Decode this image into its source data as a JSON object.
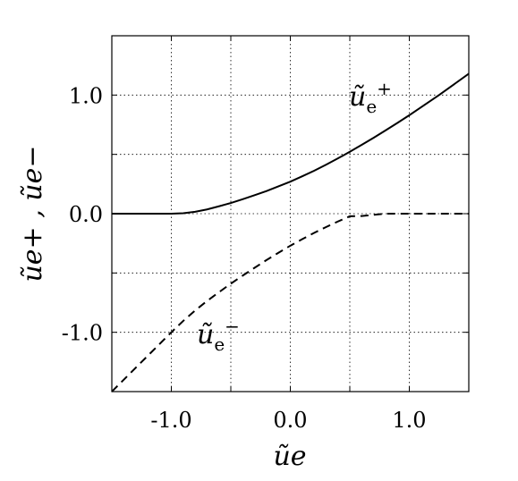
{
  "chart_data": {
    "type": "line",
    "xlabel": "ũe",
    "ylabel": "ũe+ , ũe−",
    "xlim": [
      -1.5,
      1.5
    ],
    "ylim": [
      -1.5,
      1.5
    ],
    "grid": true,
    "x_ticks": [
      "-1.0",
      "0.0",
      "1.0"
    ],
    "y_ticks": [
      "1.0",
      "0.0",
      "-1.0"
    ],
    "x": [
      -1.5,
      -1.25,
      -1.0,
      -0.9,
      -0.8,
      -0.7,
      -0.6,
      -0.5,
      -0.4,
      -0.3,
      -0.2,
      -0.1,
      0.0,
      0.1,
      0.2,
      0.3,
      0.4,
      0.5,
      0.6,
      0.7,
      0.8,
      0.9,
      1.0,
      1.25,
      1.5
    ],
    "series": [
      {
        "name": "ũe+",
        "label_main": "ũ",
        "label_sub": "e",
        "label_sup": "+",
        "style": "solid",
        "color": "#000000",
        "values": [
          0.0,
          0.0,
          0.0,
          0.004,
          0.016,
          0.036,
          0.062,
          0.09,
          0.122,
          0.156,
          0.191,
          0.23,
          0.27,
          0.315,
          0.362,
          0.413,
          0.466,
          0.522,
          0.58,
          0.64,
          0.702,
          0.765,
          0.83,
          1.0,
          1.18
        ]
      },
      {
        "name": "ũe−",
        "label_main": "ũ",
        "label_sub": "e",
        "label_sup": "−",
        "style": "dashed",
        "color": "#000000",
        "values": [
          -1.5,
          -1.25,
          -1.0,
          -0.904,
          -0.816,
          -0.736,
          -0.662,
          -0.59,
          -0.522,
          -0.456,
          -0.391,
          -0.33,
          -0.27,
          -0.215,
          -0.162,
          -0.113,
          -0.066,
          -0.022,
          -0.02,
          -0.01,
          0.0,
          0.0,
          0.0,
          0.0,
          0.0
        ]
      }
    ]
  }
}
